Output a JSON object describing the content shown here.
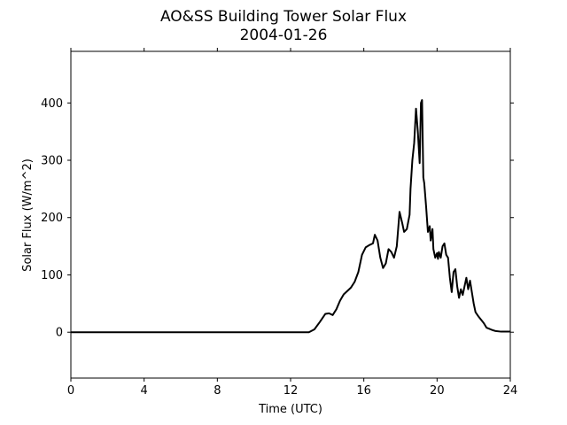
{
  "chart_data": {
    "type": "line",
    "title": "AO&SS Building Tower Solar Flux",
    "subtitle": "2004-01-26",
    "xlabel": "Time (UTC)",
    "ylabel": "Solar Flux (W/m^2)",
    "xlim": [
      0,
      24
    ],
    "ylim": [
      -80,
      490
    ],
    "xticks": [
      0,
      4,
      8,
      12,
      16,
      20,
      24
    ],
    "yticks": [
      0,
      100,
      200,
      300,
      400
    ],
    "grid": false,
    "series": [
      {
        "color": "#000000",
        "x": [
          0,
          4,
          8,
          12,
          13.0,
          13.3,
          13.6,
          13.9,
          14.1,
          14.3,
          14.5,
          14.7,
          14.9,
          15.1,
          15.3,
          15.5,
          15.7,
          15.9,
          16.1,
          16.3,
          16.5,
          16.6,
          16.75,
          16.9,
          17.05,
          17.2,
          17.35,
          17.5,
          17.65,
          17.8,
          17.95,
          18.1,
          18.2,
          18.35,
          18.5,
          18.55,
          18.65,
          18.75,
          18.85,
          18.95,
          19.05,
          19.12,
          19.18,
          19.25,
          19.3,
          19.4,
          19.5,
          19.6,
          19.65,
          19.7,
          19.75,
          19.8,
          19.9,
          20.0,
          20.05,
          20.1,
          20.2,
          20.3,
          20.4,
          20.5,
          20.6,
          20.7,
          20.8,
          20.9,
          21.0,
          21.1,
          21.2,
          21.3,
          21.4,
          21.5,
          21.6,
          21.7,
          21.8,
          21.9,
          22.0,
          22.1,
          22.25,
          22.4,
          22.55,
          22.7,
          22.85,
          23.0,
          23.2,
          23.5,
          24
        ],
        "y": [
          0,
          0,
          0,
          0,
          0,
          5,
          18,
          32,
          33,
          30,
          40,
          55,
          66,
          72,
          78,
          88,
          105,
          135,
          148,
          152,
          155,
          170,
          160,
          130,
          112,
          120,
          145,
          140,
          130,
          150,
          210,
          190,
          175,
          180,
          205,
          250,
          300,
          330,
          390,
          350,
          295,
          400,
          405,
          270,
          260,
          220,
          175,
          185,
          160,
          170,
          180,
          145,
          130,
          138,
          128,
          140,
          130,
          150,
          155,
          135,
          130,
          95,
          70,
          105,
          110,
          80,
          60,
          75,
          65,
          80,
          95,
          75,
          90,
          70,
          50,
          35,
          28,
          22,
          16,
          8,
          6,
          4,
          2,
          1,
          1
        ]
      }
    ]
  }
}
